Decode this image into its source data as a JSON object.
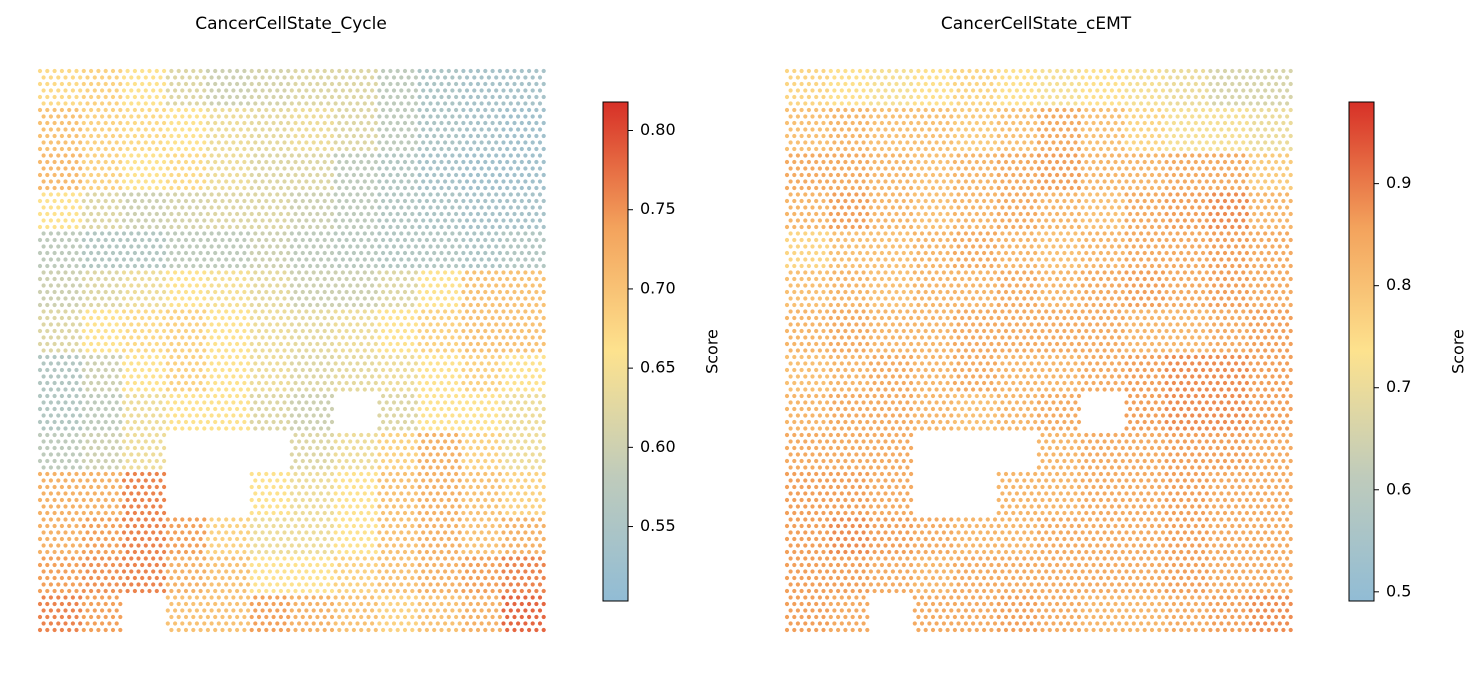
{
  "chart_data": [
    {
      "type": "spatial",
      "title": "CancerCellState_Cycle",
      "colorbar_label": "Score",
      "colormap": [
        "#91bcd5",
        "#bfcbbb",
        "#fde28e",
        "#f3a25c",
        "#d73027"
      ],
      "clim": [
        0.503,
        0.818
      ],
      "cticks": [
        {
          "value": 0.55,
          "label": "0.55"
        },
        {
          "value": 0.6,
          "label": "0.60"
        },
        {
          "value": 0.65,
          "label": "0.65"
        },
        {
          "value": 0.7,
          "label": "0.70"
        },
        {
          "value": 0.75,
          "label": "0.75"
        },
        {
          "value": 0.8,
          "label": "0.80"
        }
      ],
      "values": [
        [
          0.67,
          0.68,
          0.66,
          0.62,
          0.6,
          0.61,
          0.62,
          0.62,
          0.58,
          0.55,
          0.54,
          0.54
        ],
        [
          0.7,
          0.68,
          0.67,
          0.66,
          0.64,
          0.63,
          0.64,
          0.62,
          0.58,
          0.55,
          0.54,
          0.53
        ],
        [
          0.71,
          0.68,
          0.66,
          0.67,
          0.64,
          0.62,
          0.62,
          0.58,
          0.56,
          0.54,
          0.53,
          0.53
        ],
        [
          0.66,
          0.62,
          0.6,
          0.61,
          0.62,
          0.62,
          0.6,
          0.58,
          0.56,
          0.55,
          0.54,
          0.54
        ],
        [
          0.58,
          0.56,
          0.56,
          0.58,
          0.58,
          0.6,
          0.58,
          0.57,
          0.56,
          0.56,
          0.55,
          0.56
        ],
        [
          0.6,
          0.62,
          0.64,
          0.66,
          0.65,
          0.63,
          0.6,
          0.6,
          0.62,
          0.66,
          0.7,
          0.7
        ],
        [
          0.62,
          0.66,
          0.67,
          0.68,
          0.66,
          0.64,
          0.63,
          0.64,
          0.66,
          0.68,
          0.7,
          0.7
        ],
        [
          0.56,
          0.6,
          0.66,
          0.68,
          0.66,
          0.64,
          0.62,
          0.63,
          0.64,
          0.66,
          0.68,
          0.66
        ],
        [
          0.56,
          0.58,
          0.64,
          0.66,
          0.66,
          0.62,
          0.6,
          null,
          0.62,
          0.66,
          0.66,
          0.64
        ],
        [
          0.58,
          0.6,
          0.64,
          null,
          null,
          null,
          0.62,
          0.64,
          0.68,
          0.72,
          0.68,
          0.64
        ],
        [
          0.72,
          0.72,
          0.76,
          null,
          null,
          0.66,
          0.64,
          0.66,
          0.7,
          0.72,
          0.7,
          0.68
        ],
        [
          0.72,
          0.74,
          0.76,
          0.74,
          0.68,
          0.64,
          0.64,
          0.66,
          0.7,
          0.72,
          0.7,
          0.72
        ],
        [
          0.74,
          0.75,
          0.76,
          0.72,
          0.7,
          0.66,
          0.66,
          0.68,
          0.7,
          0.72,
          0.74,
          0.76
        ],
        [
          0.76,
          0.74,
          null,
          0.7,
          0.7,
          0.74,
          0.72,
          0.7,
          0.68,
          0.7,
          0.72,
          0.78
        ]
      ]
    },
    {
      "type": "spatial",
      "title": "CancerCellState_cEMT",
      "colorbar_label": "Score",
      "colormap": [
        "#91bcd5",
        "#bfcbbb",
        "#fde28e",
        "#f3a25c",
        "#d73027"
      ],
      "clim": [
        0.491,
        0.98
      ],
      "cticks": [
        0.5,
        0.6,
        0.7,
        0.8,
        0.9
      ],
      "values": [
        [
          0.76,
          0.74,
          0.72,
          0.74,
          0.76,
          0.74,
          0.72,
          0.74,
          0.72,
          0.7,
          0.66,
          0.66
        ],
        [
          0.8,
          0.82,
          0.8,
          0.8,
          0.78,
          0.8,
          0.84,
          0.8,
          0.76,
          0.72,
          0.72,
          0.7
        ],
        [
          0.84,
          0.84,
          0.82,
          0.8,
          0.82,
          0.84,
          0.86,
          0.82,
          0.82,
          0.84,
          0.84,
          0.78
        ],
        [
          0.82,
          0.86,
          0.82,
          0.8,
          0.82,
          0.84,
          0.82,
          0.8,
          0.84,
          0.86,
          0.88,
          0.82
        ],
        [
          0.76,
          0.8,
          0.8,
          0.82,
          0.84,
          0.82,
          0.8,
          0.82,
          0.84,
          0.84,
          0.86,
          0.84
        ],
        [
          0.8,
          0.82,
          0.8,
          0.82,
          0.82,
          0.84,
          0.82,
          0.84,
          0.86,
          0.84,
          0.86,
          0.84
        ],
        [
          0.82,
          0.84,
          0.82,
          0.82,
          0.84,
          0.84,
          0.84,
          0.84,
          0.82,
          0.82,
          0.84,
          0.86
        ],
        [
          0.8,
          0.82,
          0.84,
          0.82,
          0.84,
          0.82,
          0.82,
          0.84,
          0.86,
          0.88,
          0.88,
          0.86
        ],
        [
          0.82,
          0.84,
          0.84,
          0.82,
          0.8,
          0.82,
          0.84,
          null,
          0.86,
          0.88,
          0.88,
          0.86
        ],
        [
          0.84,
          0.84,
          0.84,
          null,
          null,
          null,
          0.82,
          0.84,
          0.84,
          0.86,
          0.86,
          0.84
        ],
        [
          0.86,
          0.86,
          0.84,
          null,
          null,
          0.82,
          0.82,
          0.84,
          0.84,
          0.86,
          0.84,
          0.84
        ],
        [
          0.86,
          0.88,
          0.86,
          0.84,
          0.82,
          0.82,
          0.84,
          0.84,
          0.84,
          0.86,
          0.84,
          0.84
        ],
        [
          0.86,
          0.86,
          0.84,
          0.82,
          0.84,
          0.84,
          0.84,
          0.84,
          0.84,
          0.86,
          0.84,
          0.84
        ],
        [
          0.86,
          0.84,
          null,
          0.84,
          0.84,
          0.86,
          0.84,
          0.82,
          0.82,
          0.84,
          0.86,
          0.88
        ]
      ]
    }
  ]
}
